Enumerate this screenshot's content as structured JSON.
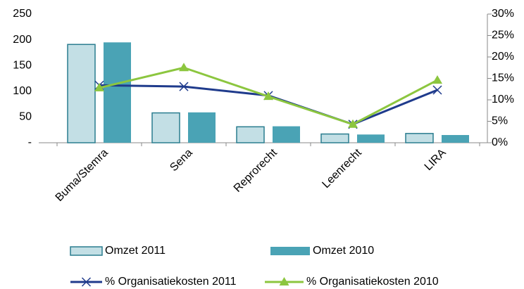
{
  "chart_data": {
    "type": "bar",
    "categories": [
      "Buma/Stemra",
      "Sena",
      "Reprorecht",
      "Leenrecht",
      "LIRA"
    ],
    "series": [
      {
        "name": "Omzet 2011",
        "type": "bar",
        "color": "#c3dfe5",
        "stroke": "#2a7d8f",
        "values": [
          191,
          58,
          31,
          17,
          18
        ]
      },
      {
        "name": "Omzet 2010",
        "type": "bar",
        "color": "#4aa3b5",
        "values": [
          195,
          59,
          32,
          16,
          15
        ]
      },
      {
        "name": "% Organisatiekosten 2011",
        "type": "line",
        "axis": "y2",
        "marker": "x",
        "color": "#1f3b8c",
        "values": [
          13.4,
          13.1,
          11,
          4.3,
          12.3
        ]
      },
      {
        "name": "% Organisatiekosten 2010",
        "type": "line",
        "axis": "y2",
        "marker": "triangle",
        "color": "#8cc63f",
        "values": [
          12.8,
          17.5,
          10.8,
          4.3,
          14.6
        ]
      }
    ],
    "ylim": [
      0,
      250
    ],
    "yticks": [
      {
        "value": 0,
        "label": "-"
      },
      50,
      100,
      150,
      200,
      250
    ],
    "y2lim": [
      0,
      30
    ],
    "y2ticks": [
      {
        "value": 0,
        "label": "0%"
      },
      {
        "value": 5,
        "label": "5%"
      },
      {
        "value": 10,
        "label": "10%"
      },
      {
        "value": 15,
        "label": "15%"
      },
      {
        "value": 20,
        "label": "20%"
      },
      {
        "value": 25,
        "label": "25%"
      },
      {
        "value": 30,
        "label": "30%"
      }
    ],
    "grid": false,
    "legend": "bottom"
  }
}
